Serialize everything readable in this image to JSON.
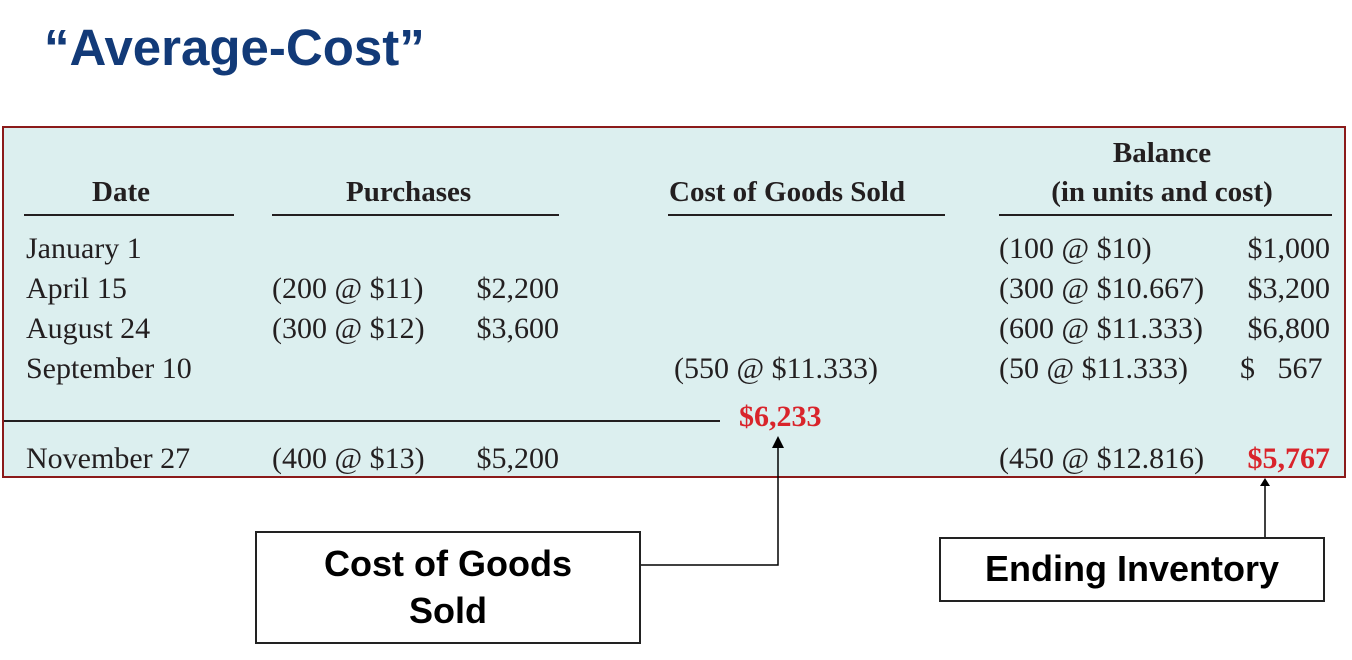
{
  "title": "“Average-Cost”",
  "headers": {
    "date": "Date",
    "purchases": "Purchases",
    "cogs": "Cost of Goods Sold",
    "balance_line1": "Balance",
    "balance_line2": "(in units and cost)"
  },
  "rows": [
    {
      "date": "January 1",
      "purchase_units": "",
      "purchase_amount": "",
      "cogs": "",
      "balance_units": "(100 @ $10)",
      "balance_amount": "$1,000"
    },
    {
      "date": "April 15",
      "purchase_units": "(200 @ $11)",
      "purchase_amount": "$2,200",
      "cogs": "",
      "balance_units": "(300 @ $10.667)",
      "balance_amount": "$3,200"
    },
    {
      "date": "August 24",
      "purchase_units": "(300 @ $12)",
      "purchase_amount": "$3,600",
      "cogs": "",
      "balance_units": "(600 @ $11.333)",
      "balance_amount": "$6,800"
    },
    {
      "date": "September 10",
      "purchase_units": "",
      "purchase_amount": "",
      "cogs": "(550 @ $11.333)",
      "balance_units": "(50 @ $11.333)",
      "balance_amount": "$   567"
    },
    {
      "date": "November 27",
      "purchase_units": "(400 @ $13)",
      "purchase_amount": "$5,200",
      "cogs": "",
      "balance_units": "(450 @ $12.816)",
      "balance_amount": "$5,767"
    }
  ],
  "cogs_total": "$6,233",
  "callouts": {
    "cogs_line1": "Cost of Goods",
    "cogs_line2": "Sold",
    "ending_inventory": "Ending Inventory"
  },
  "colors": {
    "title": "#123a78",
    "table_background": "#dcefef",
    "table_border": "#8b1a1a",
    "highlight": "#d9242b"
  }
}
